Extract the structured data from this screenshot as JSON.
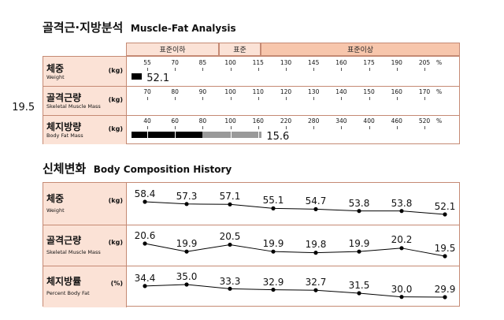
{
  "sections": {
    "analysis": {
      "title_ko": "골격근·지방분석",
      "title_en": "Muscle-Fat Analysis"
    },
    "history": {
      "title_ko": "신체변화",
      "title_en": "Body Composition History"
    }
  },
  "bands": {
    "below": "표준이하",
    "normal": "표준",
    "above": "표준이상"
  },
  "colors": {
    "band_fill": "#fbe2d6",
    "band_dark": "#f7c6ac",
    "border": "#c58a74",
    "bar_black": "#000000",
    "bar_gray": "#9a9a9a"
  },
  "chart_data": [
    {
      "type": "bar",
      "rows": [
        {
          "label_ko": "체중",
          "label_en": "Weight",
          "unit": "(kg)",
          "ticks": [
            "55",
            "70",
            "85",
            "100",
            "115",
            "130",
            "145",
            "160",
            "175",
            "190",
            "205"
          ],
          "pct_symbol": "%",
          "value": 52.1,
          "value_label": "52.1",
          "tick_start": 55,
          "tick_step": 15
        },
        {
          "label_ko": "골격근량",
          "label_en": "Skeletal Muscle Mass",
          "unit": "(kg)",
          "ticks": [
            "70",
            "80",
            "90",
            "100",
            "110",
            "120",
            "130",
            "140",
            "150",
            "160",
            "170"
          ],
          "pct_symbol": "%",
          "value": 19.5,
          "value_label": "19.5",
          "tick_start": 70,
          "tick_step": 10
        },
        {
          "label_ko": "체지방량",
          "label_en": "Body Fat Mass",
          "unit": "(kg)",
          "ticks": [
            "40",
            "60",
            "80",
            "100",
            "160",
            "220",
            "280",
            "340",
            "400",
            "460",
            "520"
          ],
          "pct_symbol": "%",
          "value": 15.6,
          "value_label": "15.6"
        }
      ]
    },
    {
      "type": "line",
      "rows": [
        {
          "label_ko": "체중",
          "label_en": "Weight",
          "unit": "(kg)",
          "values": [
            58.4,
            57.3,
            57.1,
            55.1,
            54.7,
            53.8,
            53.8,
            52.1
          ],
          "labels": [
            "58.4",
            "57.3",
            "57.1",
            "55.1",
            "54.7",
            "53.8",
            "53.8",
            "52.1"
          ]
        },
        {
          "label_ko": "골격근량",
          "label_en": "Skeletal Muscle Mass",
          "unit": "(kg)",
          "values": [
            20.6,
            19.9,
            20.5,
            19.9,
            19.8,
            19.9,
            20.2,
            19.5
          ],
          "labels": [
            "20.6",
            "19.9",
            "20.5",
            "19.9",
            "19.8",
            "19.9",
            "20.2",
            "19.5"
          ]
        },
        {
          "label_ko": "체지방률",
          "label_en": "Percent Body Fat",
          "unit": "(%)",
          "values": [
            34.4,
            35.0,
            33.3,
            32.9,
            32.7,
            31.5,
            30.0,
            29.9
          ],
          "labels": [
            "34.4",
            "35.0",
            "33.3",
            "32.9",
            "32.7",
            "31.5",
            "30.0",
            "29.9"
          ]
        }
      ]
    }
  ]
}
